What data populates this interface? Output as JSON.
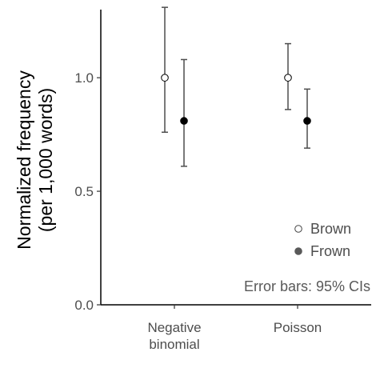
{
  "chart_data": {
    "type": "scatter",
    "categories": [
      "Negative binomial",
      "Poisson"
    ],
    "category_label_lines": [
      [
        "Negative",
        "binomial"
      ],
      [
        "Poisson"
      ]
    ],
    "ylabel_lines": [
      "Normalized frequency",
      "(per 1,000 words)"
    ],
    "ylim": [
      0,
      1.3
    ],
    "yticks": [
      0.0,
      0.5,
      1.0
    ],
    "ytick_labels": [
      "0.0",
      "0.5",
      "1.0"
    ],
    "grid": false,
    "legend_position": "bottom-right",
    "series": [
      {
        "name": "Brown",
        "marker": "open-circle",
        "color": "#ffffff",
        "points": [
          {
            "category": "Negative binomial",
            "value": 1.0,
            "ci_low": 0.76,
            "ci_high": 1.31
          },
          {
            "category": "Poisson",
            "value": 1.0,
            "ci_low": 0.86,
            "ci_high": 1.15
          }
        ]
      },
      {
        "name": "Frown",
        "marker": "filled-circle",
        "color": "#000000",
        "points": [
          {
            "category": "Negative binomial",
            "value": 0.81,
            "ci_low": 0.61,
            "ci_high": 1.08
          },
          {
            "category": "Poisson",
            "value": 0.81,
            "ci_low": 0.69,
            "ci_high": 0.95
          }
        ]
      }
    ],
    "annotation": "Error bars: 95% CIs",
    "colors": {
      "axis": "#000000",
      "errorbar": "#4d4d4d",
      "text": "#4d4d4d",
      "legend_marker": "#595959"
    }
  }
}
